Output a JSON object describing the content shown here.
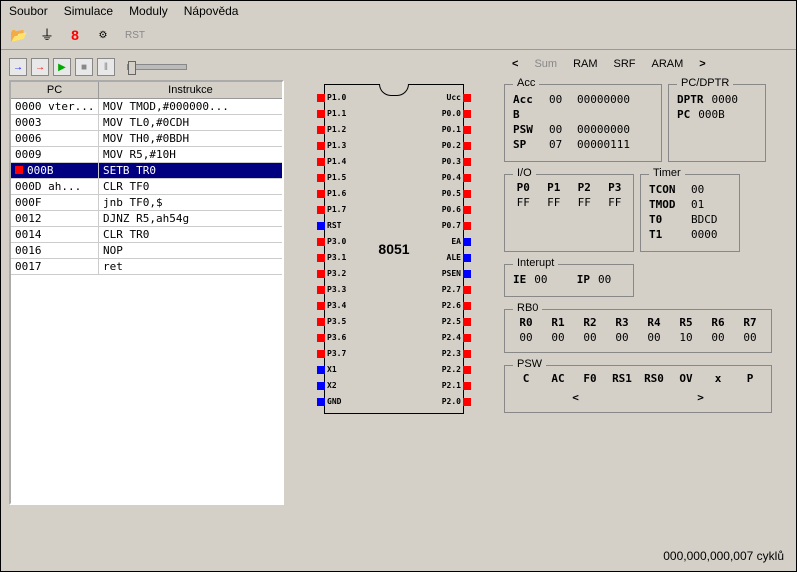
{
  "menu": [
    "Soubor",
    "Simulace",
    "Moduly",
    "Nápověda"
  ],
  "toolbar_rst": "RST",
  "code_headers": {
    "pc": "PC",
    "instr": "Instrukce"
  },
  "code": [
    {
      "pc": "0000 vter...",
      "instr": "MOV TMOD,#000000..."
    },
    {
      "pc": "0003",
      "instr": "MOV TL0,#0CDH"
    },
    {
      "pc": "0006",
      "instr": "MOV TH0,#0BDH"
    },
    {
      "pc": "0009",
      "instr": "MOV R5,#10H"
    },
    {
      "pc": "000B",
      "instr": "SETB TR0",
      "sel": true,
      "mark": true
    },
    {
      "pc": "000D ah...",
      "instr": "CLR TF0"
    },
    {
      "pc": "000F",
      "instr": "jnb TF0,$"
    },
    {
      "pc": "0012",
      "instr": "DJNZ R5,ah54g"
    },
    {
      "pc": "0014",
      "instr": "CLR TR0"
    },
    {
      "pc": "0016",
      "instr": "NOP"
    },
    {
      "pc": "0017",
      "instr": "ret"
    }
  ],
  "chip_name": "8051",
  "pins_left": [
    {
      "l": "P1.0",
      "c": "r"
    },
    {
      "l": "P1.1",
      "c": "r"
    },
    {
      "l": "P1.2",
      "c": "r"
    },
    {
      "l": "P1.3",
      "c": "r"
    },
    {
      "l": "P1.4",
      "c": "r"
    },
    {
      "l": "P1.5",
      "c": "r"
    },
    {
      "l": "P1.6",
      "c": "r"
    },
    {
      "l": "P1.7",
      "c": "r"
    },
    {
      "l": "RST",
      "c": "b"
    },
    {
      "l": "P3.0",
      "c": "r"
    },
    {
      "l": "P3.1",
      "c": "r"
    },
    {
      "l": "P3.2",
      "c": "r"
    },
    {
      "l": "P3.3",
      "c": "r"
    },
    {
      "l": "P3.4",
      "c": "r"
    },
    {
      "l": "P3.5",
      "c": "r"
    },
    {
      "l": "P3.6",
      "c": "r"
    },
    {
      "l": "P3.7",
      "c": "r"
    },
    {
      "l": "X1",
      "c": "b"
    },
    {
      "l": "X2",
      "c": "b"
    },
    {
      "l": "GND",
      "c": "b"
    }
  ],
  "pins_right": [
    {
      "l": "Ucc",
      "c": "r"
    },
    {
      "l": "P0.0",
      "c": "r"
    },
    {
      "l": "P0.1",
      "c": "r"
    },
    {
      "l": "P0.2",
      "c": "r"
    },
    {
      "l": "P0.3",
      "c": "r"
    },
    {
      "l": "P0.4",
      "c": "r"
    },
    {
      "l": "P0.5",
      "c": "r"
    },
    {
      "l": "P0.6",
      "c": "r"
    },
    {
      "l": "P0.7",
      "c": "r"
    },
    {
      "l": "EA",
      "c": "b"
    },
    {
      "l": "ALE",
      "c": "b"
    },
    {
      "l": "PSEN",
      "c": "b"
    },
    {
      "l": "P2.7",
      "c": "r"
    },
    {
      "l": "P2.6",
      "c": "r"
    },
    {
      "l": "P2.5",
      "c": "r"
    },
    {
      "l": "P2.4",
      "c": "r"
    },
    {
      "l": "P2.3",
      "c": "r"
    },
    {
      "l": "P2.2",
      "c": "r"
    },
    {
      "l": "P2.1",
      "c": "r"
    },
    {
      "l": "P2.0",
      "c": "r"
    }
  ],
  "tabs": {
    "sum": "Sum",
    "ram": "RAM",
    "srf": "SRF",
    "aram": "ARAM"
  },
  "acc": {
    "title": "Acc",
    "rows": [
      [
        "Acc",
        "00",
        "00000000"
      ],
      [
        "B",
        "",
        ""
      ],
      [
        "PSW",
        "00",
        "00000000"
      ],
      [
        "SP",
        "07",
        "00000111"
      ]
    ]
  },
  "pcdptr": {
    "title": "PC/DPTR",
    "dptr_l": "DPTR",
    "dptr_v": "0000",
    "pc_l": "PC",
    "pc_v": "000B"
  },
  "io": {
    "title": "I/O",
    "hdr": [
      "P0",
      "P1",
      "P2",
      "P3"
    ],
    "val": [
      "FF",
      "FF",
      "FF",
      "FF"
    ]
  },
  "timer": {
    "title": "Timer",
    "rows": [
      [
        "TCON",
        "00"
      ],
      [
        "TMOD",
        "01"
      ],
      [
        "T0",
        "BDCD"
      ],
      [
        "T1",
        "0000"
      ]
    ]
  },
  "interupt": {
    "title": "Interupt",
    "ie_l": "IE",
    "ie_v": "00",
    "ip_l": "IP",
    "ip_v": "00"
  },
  "rb0": {
    "title": "RB0",
    "hdr": [
      "R0",
      "R1",
      "R2",
      "R3",
      "R4",
      "R5",
      "R6",
      "R7"
    ],
    "val": [
      "00",
      "00",
      "00",
      "00",
      "00",
      "10",
      "00",
      "00"
    ]
  },
  "psw": {
    "title": "PSW",
    "hdr": [
      "C",
      "AC",
      "F0",
      "RS1",
      "RS0",
      "OV",
      "x",
      "P"
    ]
  },
  "cycles": "000,000,000,007 cyklů"
}
